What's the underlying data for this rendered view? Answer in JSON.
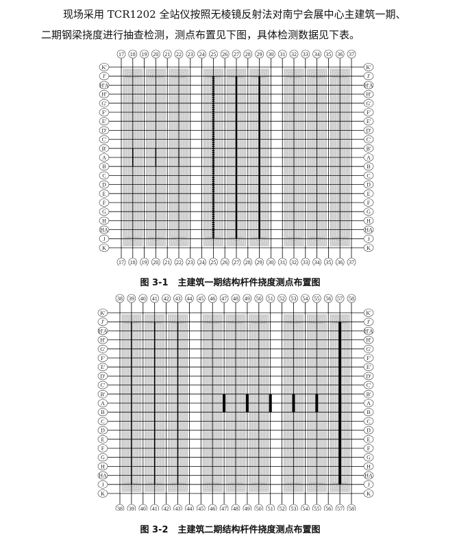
{
  "paragraph": {
    "line1": "现场采用 TCR1202 全站仪按照无棱镜反射法对南宁会展中心主建筑一期、",
    "line2": "二期钢梁挠度进行抽查检测，测点布置见下图，具体检测数据见下表。"
  },
  "rows": [
    "K'",
    "J'",
    "H'A",
    "H'",
    "G'",
    "F'",
    "E'",
    "D'",
    "C'",
    "B'",
    "A",
    "B",
    "C",
    "D",
    "E",
    "F",
    "G",
    "H",
    "HA",
    "J",
    "K"
  ],
  "figures": [
    {
      "number": "图 3-1",
      "title": "主建筑一期结构杆件挠度测点布置图",
      "columns": [
        "17",
        "18",
        "19",
        "20",
        "21",
        "22",
        "23",
        "24",
        "25",
        "26",
        "27",
        "28",
        "29",
        "30",
        "31",
        "32",
        "33",
        "34",
        "35",
        "36",
        "37"
      ]
    },
    {
      "number": "图 3-2",
      "title": "主建筑二期结构杆件挠度测点布置图",
      "columns": [
        "38",
        "39",
        "40",
        "41",
        "42",
        "43",
        "44",
        "45",
        "46",
        "47",
        "48",
        "49",
        "50",
        "51",
        "52",
        "53",
        "54",
        "55",
        "56",
        "57",
        "58"
      ]
    }
  ],
  "colors": {
    "block_fill": "#dcdcdc",
    "block_line": "#b5b5b5",
    "grid": "#000000"
  }
}
